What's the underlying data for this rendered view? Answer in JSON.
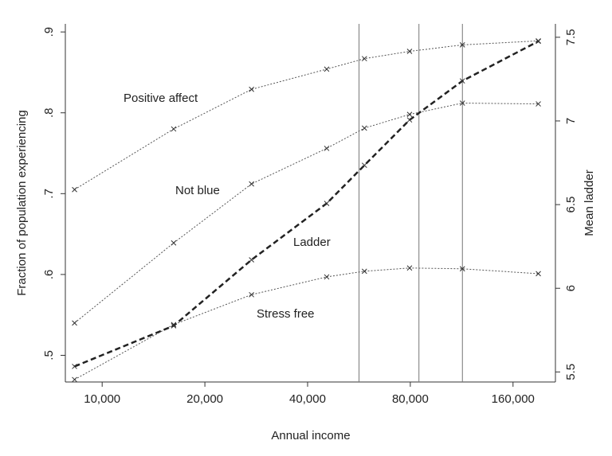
{
  "chart_data": {
    "type": "line",
    "xscale": "log",
    "x_label": "Annual income",
    "y_label": "Fraction of population experiencing",
    "y2_label": "Mean ladder",
    "x": [
      8300,
      16200,
      27400,
      45500,
      58700,
      79600,
      113700,
      189800
    ],
    "xlim": [
      7800,
      213000
    ],
    "xticks": [
      {
        "value": 10000,
        "label": "10,000"
      },
      {
        "value": 20000,
        "label": "20,000"
      },
      {
        "value": 40000,
        "label": "40,000"
      },
      {
        "value": 80000,
        "label": "80,000"
      },
      {
        "value": 160000,
        "label": "160,000"
      }
    ],
    "ylim": [
      0.467,
      0.91
    ],
    "yticks": [
      {
        "value": 0.5,
        "label": ".5"
      },
      {
        "value": 0.6,
        "label": ".6"
      },
      {
        "value": 0.7,
        "label": ".7"
      },
      {
        "value": 0.8,
        "label": ".8"
      },
      {
        "value": 0.9,
        "label": ".9"
      }
    ],
    "y2lim": [
      5.44,
      7.58
    ],
    "y2ticks": [
      5.5,
      6,
      6.5,
      7,
      7.5
    ],
    "vlines": [
      56600,
      84800,
      113700
    ],
    "series": [
      {
        "name": "Positive affect",
        "color": "#555555",
        "line_style": "dotted",
        "values": [
          0.705,
          0.78,
          0.829,
          0.854,
          0.867,
          0.876,
          0.884,
          0.889
        ]
      },
      {
        "name": "Not blue",
        "color": "#555555",
        "line_style": "dotted",
        "values": [
          0.54,
          0.639,
          0.712,
          0.756,
          0.781,
          0.798,
          0.812,
          0.811
        ]
      },
      {
        "name": "Stress free",
        "color": "#555555",
        "line_style": "dotted",
        "values": [
          0.47,
          0.538,
          0.575,
          0.597,
          0.604,
          0.608,
          0.607,
          0.601
        ]
      },
      {
        "name": "Ladder",
        "color": "#222222",
        "line_style": "dashed",
        "axis": "y2",
        "values": [
          5.533,
          5.776,
          6.17,
          6.507,
          6.735,
          7.006,
          7.239,
          7.476
        ]
      }
    ]
  }
}
